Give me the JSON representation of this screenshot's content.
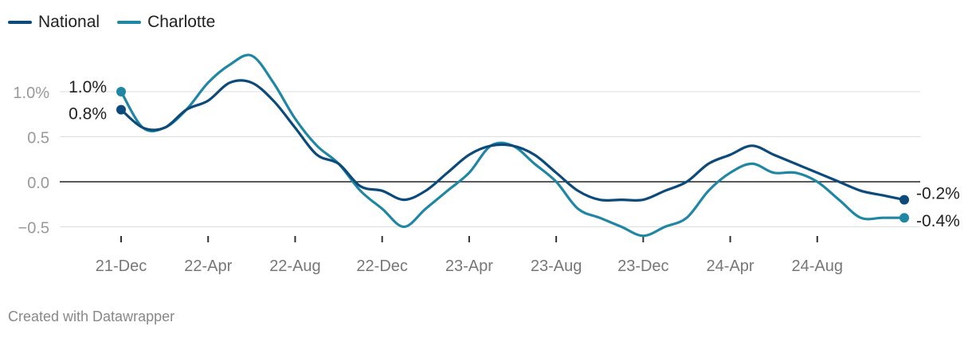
{
  "legend": {
    "national": {
      "label": "National",
      "color": "#0b4a7a"
    },
    "charlotte": {
      "label": "Charlotte",
      "color": "#1f86a4"
    }
  },
  "footer": {
    "credit": "Created with Datawrapper"
  },
  "chart_data": {
    "type": "line",
    "title": "",
    "xlabel": "",
    "ylabel": "",
    "ylim": [
      -0.65,
      1.45
    ],
    "y_ticks": [
      {
        "value": 1.0,
        "label": "1.0%"
      },
      {
        "value": 0.5,
        "label": "0.5"
      },
      {
        "value": 0.0,
        "label": "0.0"
      },
      {
        "value": -0.5,
        "label": "−0.5"
      }
    ],
    "x_ticks": [
      "21-Dec",
      "22-Apr",
      "22-Aug",
      "22-Dec",
      "23-Apr",
      "23-Aug",
      "23-Dec",
      "24-Apr",
      "24-Aug"
    ],
    "x": [
      "21-Dec",
      "22-Jan",
      "22-Feb",
      "22-Mar",
      "22-Apr",
      "22-May",
      "22-Jun",
      "22-Jul",
      "22-Aug",
      "22-Sep",
      "22-Oct",
      "22-Nov",
      "22-Dec",
      "23-Jan",
      "23-Feb",
      "23-Mar",
      "23-Apr",
      "23-May",
      "23-Jun",
      "23-Jul",
      "23-Aug",
      "23-Sep",
      "23-Oct",
      "23-Nov",
      "23-Dec",
      "24-Jan",
      "24-Feb",
      "24-Mar",
      "24-Apr",
      "24-May",
      "24-Jun",
      "24-Jul",
      "24-Aug",
      "24-Sep",
      "24-Oct",
      "24-Nov",
      "24-Dec"
    ],
    "series": [
      {
        "name": "National",
        "color": "#0b4a7a",
        "values": [
          0.8,
          0.6,
          0.6,
          0.8,
          0.9,
          1.1,
          1.1,
          0.9,
          0.6,
          0.3,
          0.2,
          -0.05,
          -0.1,
          -0.2,
          -0.1,
          0.1,
          0.3,
          0.4,
          0.4,
          0.3,
          0.1,
          -0.1,
          -0.2,
          -0.2,
          -0.2,
          -0.1,
          0.0,
          0.2,
          0.3,
          0.4,
          0.3,
          0.2,
          0.1,
          0.0,
          -0.1,
          -0.15,
          -0.2
        ],
        "end_label": "-0.2%",
        "start_label": "0.8%"
      },
      {
        "name": "Charlotte",
        "color": "#1f86a4",
        "values": [
          1.0,
          0.6,
          0.6,
          0.8,
          1.1,
          1.3,
          1.4,
          1.1,
          0.7,
          0.4,
          0.2,
          -0.1,
          -0.3,
          -0.5,
          -0.3,
          -0.1,
          0.1,
          0.4,
          0.4,
          0.2,
          0.0,
          -0.3,
          -0.4,
          -0.5,
          -0.6,
          -0.5,
          -0.4,
          -0.1,
          0.1,
          0.2,
          0.1,
          0.1,
          0.0,
          -0.2,
          -0.4,
          -0.4,
          -0.4
        ],
        "end_label": "-0.4%",
        "start_label": "1.0%"
      }
    ],
    "grid": true,
    "legend_position": "top-left"
  }
}
